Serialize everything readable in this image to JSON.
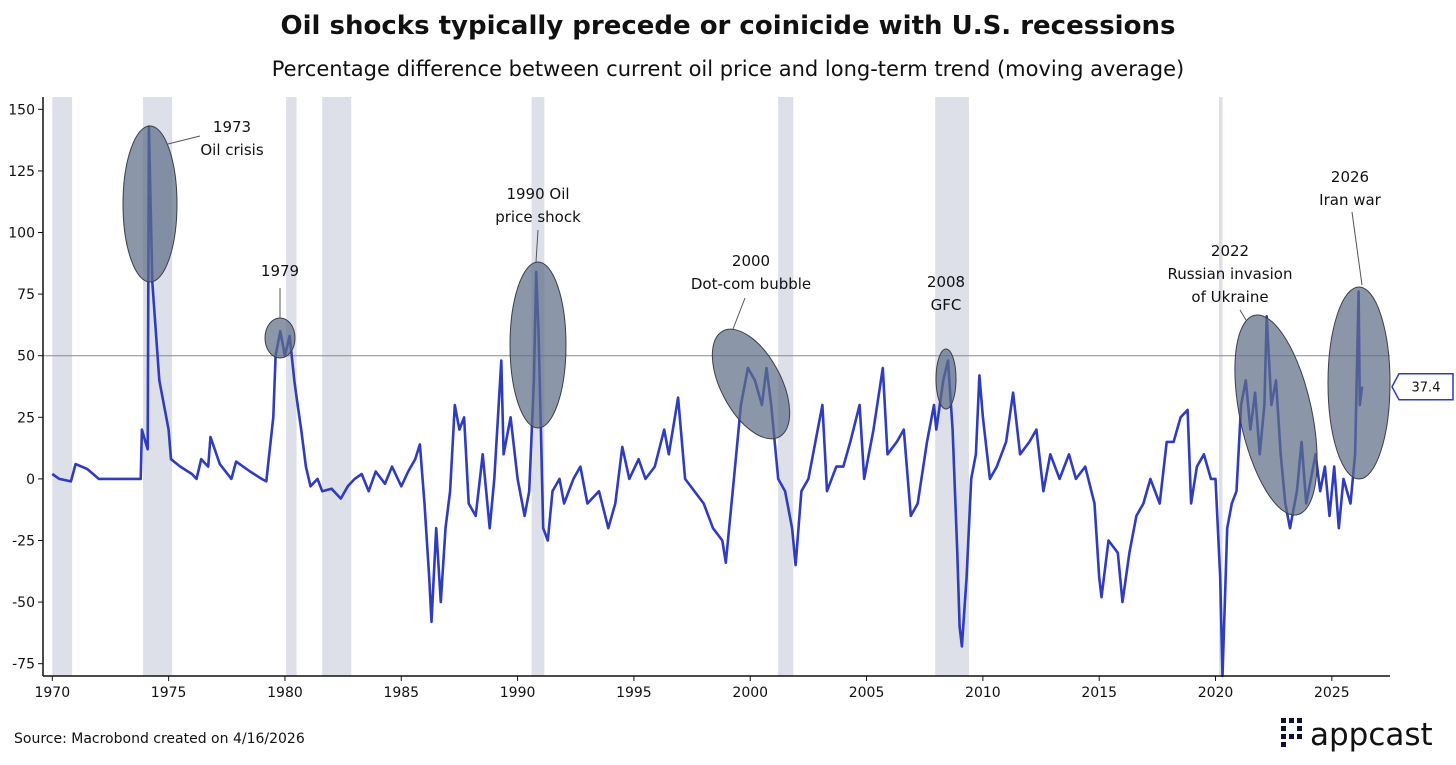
{
  "chart_data": {
    "type": "line",
    "title": "Oil shocks typically precede or coinicide with U.S. recessions",
    "subtitle": "Percentage difference between current oil price and long-term trend (moving average)",
    "source": "Source: Macrobond created on 4/16/2026",
    "brand": "appcast",
    "xlim": [
      1969.6,
      2027.5
    ],
    "ylim": [
      -80,
      155
    ],
    "xticks": [
      1970,
      1975,
      1980,
      1985,
      1990,
      1995,
      2000,
      2005,
      2010,
      2015,
      2020,
      2025
    ],
    "yticks": [
      -75,
      -50,
      -25,
      0,
      25,
      50,
      75,
      100,
      125,
      150
    ],
    "reference_line": 50,
    "recession_color": "#dde0e8",
    "recessions": [
      {
        "start": 1970.0,
        "end": 1970.85
      },
      {
        "start": 1973.9,
        "end": 1975.15
      },
      {
        "start": 1980.05,
        "end": 1980.5
      },
      {
        "start": 1981.6,
        "end": 1982.85
      },
      {
        "start": 1990.6,
        "end": 1991.15
      },
      {
        "start": 2001.2,
        "end": 2001.85
      },
      {
        "start": 2007.95,
        "end": 2009.4
      },
      {
        "start": 2020.15,
        "end": 2020.3
      }
    ],
    "series": [
      {
        "name": "Oil price vs trend",
        "color": "#2f3cc0",
        "x": [
          1970.0,
          1970.3,
          1970.8,
          1971.0,
          1971.5,
          1972.0,
          1973.8,
          1973.85,
          1974.0,
          1974.1,
          1974.15,
          1974.3,
          1974.6,
          1975.0,
          1975.1,
          1975.5,
          1976.0,
          1976.2,
          1976.4,
          1976.7,
          1976.8,
          1977.2,
          1977.7,
          1977.9,
          1978.5,
          1979.0,
          1979.2,
          1979.3,
          1979.5,
          1979.6,
          1979.8,
          1980.0,
          1980.2,
          1980.4,
          1980.5,
          1980.7,
          1980.9,
          1981.1,
          1981.4,
          1981.6,
          1982.0,
          1982.4,
          1982.7,
          1983.0,
          1983.3,
          1983.6,
          1983.9,
          1984.3,
          1984.6,
          1985.0,
          1985.3,
          1985.6,
          1985.8,
          1986.0,
          1986.2,
          1986.3,
          1986.5,
          1986.7,
          1986.9,
          1987.1,
          1987.3,
          1987.5,
          1987.7,
          1987.9,
          1988.2,
          1988.5,
          1988.8,
          1989.0,
          1989.3,
          1989.4,
          1989.7,
          1990.0,
          1990.3,
          1990.5,
          1990.7,
          1990.8,
          1990.9,
          1991.0,
          1991.1,
          1991.3,
          1991.5,
          1991.8,
          1992.0,
          1992.4,
          1992.7,
          1993.0,
          1993.5,
          1993.9,
          1994.2,
          1994.5,
          1994.8,
          1995.2,
          1995.5,
          1995.9,
          1996.3,
          1996.5,
          1996.9,
          1997.2,
          1997.6,
          1998.0,
          1998.4,
          1998.8,
          1998.95,
          1999.3,
          1999.6,
          1999.9,
          2000.2,
          2000.5,
          2000.7,
          2000.9,
          2001.2,
          2001.5,
          2001.8,
          2001.95,
          2002.2,
          2002.5,
          2002.9,
          2003.1,
          2003.3,
          2003.7,
          2004.0,
          2004.3,
          2004.7,
          2004.9,
          2005.3,
          2005.7,
          2005.9,
          2006.3,
          2006.6,
          2006.9,
          2007.2,
          2007.6,
          2007.9,
          2008.0,
          2008.3,
          2008.5,
          2008.7,
          2008.9,
          2009.0,
          2009.1,
          2009.3,
          2009.5,
          2009.7,
          2009.85,
          2010.0,
          2010.3,
          2010.6,
          2011.0,
          2011.3,
          2011.6,
          2012.0,
          2012.3,
          2012.6,
          2012.9,
          2013.3,
          2013.7,
          2014.0,
          2014.4,
          2014.8,
          2015.0,
          2015.1,
          2015.4,
          2015.8,
          2016.0,
          2016.3,
          2016.6,
          2016.9,
          2017.2,
          2017.6,
          2017.9,
          2018.2,
          2018.5,
          2018.8,
          2018.95,
          2019.2,
          2019.5,
          2019.8,
          2020.0,
          2020.2,
          2020.3,
          2020.5,
          2020.7,
          2020.9,
          2021.1,
          2021.3,
          2021.5,
          2021.7,
          2021.9,
          2022.1,
          2022.2,
          2022.4,
          2022.6,
          2022.8,
          2023.0,
          2023.2,
          2023.5,
          2023.7,
          2023.9,
          2024.1,
          2024.3,
          2024.5,
          2024.7,
          2024.9,
          2025.1,
          2025.3,
          2025.5,
          2025.8,
          2026.0,
          2026.15,
          2026.2,
          2026.3
        ],
        "values": [
          2,
          0,
          -1,
          6,
          4,
          0,
          0,
          20,
          15,
          12,
          143,
          80,
          40,
          20,
          8,
          5,
          2,
          0,
          8,
          5,
          17,
          6,
          0,
          7,
          3,
          0,
          -1,
          8,
          25,
          50,
          60,
          50,
          58,
          40,
          33,
          20,
          5,
          -3,
          0,
          -5,
          -4,
          -8,
          -3,
          0,
          2,
          -5,
          3,
          -2,
          5,
          -3,
          3,
          8,
          14,
          -10,
          -40,
          -58,
          -20,
          -50,
          -20,
          -5,
          30,
          20,
          25,
          -10,
          -15,
          10,
          -20,
          0,
          48,
          10,
          25,
          0,
          -15,
          -5,
          40,
          84,
          60,
          20,
          -20,
          -25,
          -5,
          0,
          -10,
          0,
          5,
          -10,
          -5,
          -20,
          -10,
          13,
          0,
          8,
          0,
          5,
          20,
          10,
          33,
          0,
          -5,
          -10,
          -20,
          -25,
          -34,
          0,
          30,
          45,
          40,
          30,
          45,
          30,
          0,
          -5,
          -20,
          -35,
          -5,
          0,
          20,
          30,
          -5,
          5,
          5,
          15,
          30,
          0,
          20,
          45,
          10,
          15,
          20,
          -15,
          -10,
          15,
          30,
          20,
          40,
          48,
          20,
          -30,
          -60,
          -68,
          -40,
          0,
          10,
          42,
          25,
          0,
          5,
          15,
          35,
          10,
          15,
          20,
          -5,
          10,
          0,
          10,
          0,
          5,
          -10,
          -40,
          -48,
          -25,
          -30,
          -50,
          -30,
          -15,
          -10,
          0,
          -10,
          15,
          15,
          25,
          28,
          -10,
          5,
          10,
          0,
          0,
          -40,
          -80,
          -20,
          -10,
          -5,
          30,
          40,
          20,
          35,
          10,
          30,
          66,
          30,
          40,
          10,
          -10,
          -20,
          -5,
          15,
          -10,
          0,
          10,
          -5,
          5,
          -15,
          5,
          -20,
          0,
          -10,
          10,
          76,
          30,
          37.4
        ]
      }
    ],
    "annotations": [
      {
        "text": [
          "1973",
          "Oil crisis"
        ]
      },
      {
        "text": [
          "1979"
        ]
      },
      {
        "text": [
          "1990 Oil",
          "price shock"
        ]
      },
      {
        "text": [
          "2000",
          "Dot-com bubble"
        ]
      },
      {
        "text": [
          "2008",
          "GFC"
        ]
      },
      {
        "text": [
          "2022",
          "Russian invasion",
          "of Ukraine"
        ]
      },
      {
        "text": [
          "2026",
          "Iran war"
        ]
      }
    ]
  }
}
